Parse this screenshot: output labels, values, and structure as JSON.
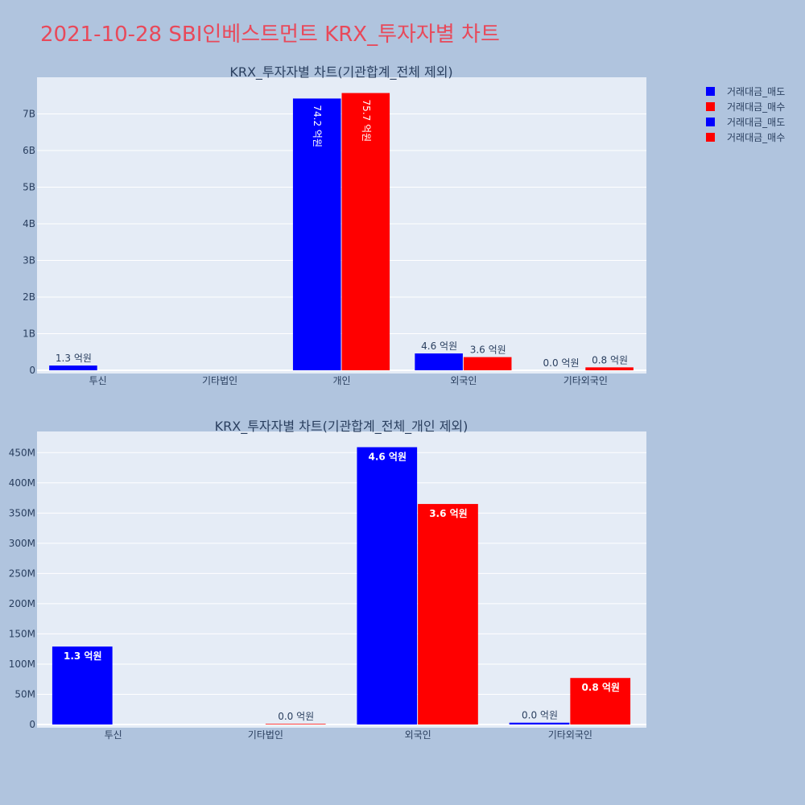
{
  "page": {
    "title": "2021-10-28 SBI인베스트먼트 KRX_투자자별 차트",
    "background": "#b0c4de",
    "title_color": "#e8495a",
    "plot_background": "#e5ecf6"
  },
  "legend": {
    "placement": "top-right",
    "items": [
      {
        "label": "거래대금_매도",
        "color": "#0000ff"
      },
      {
        "label": "거래대금_매수",
        "color": "#ff0000"
      },
      {
        "label": "거래대금_매도",
        "color": "#0000ff"
      },
      {
        "label": "거래대금_매수",
        "color": "#ff0000"
      }
    ]
  },
  "chart_data": [
    {
      "type": "bar",
      "title": "KRX_투자자별 차트(기관합계_전체 제외)",
      "categories": [
        "투신",
        "기타법인",
        "개인",
        "외국인",
        "기타외국인"
      ],
      "series": [
        {
          "name": "거래대금_매도",
          "color": "#0000ff",
          "values": [
            130000000,
            0,
            7420000000,
            460000000,
            0
          ],
          "labels": [
            "1.3 억원",
            "",
            "74.2 억원",
            "4.6 억원",
            "0.0 억원"
          ]
        },
        {
          "name": "거래대금_매수",
          "color": "#ff0000",
          "values": [
            0,
            0,
            7570000000,
            360000000,
            80000000
          ],
          "labels": [
            "",
            "",
            "75.7 억원",
            "3.6 억원",
            "0.8 억원"
          ]
        }
      ],
      "ylim": [
        0,
        8000000000
      ],
      "yticks": [
        {
          "value": 0,
          "label": "0"
        },
        {
          "value": 1000000000,
          "label": "1B"
        },
        {
          "value": 2000000000,
          "label": "2B"
        },
        {
          "value": 3000000000,
          "label": "3B"
        },
        {
          "value": 4000000000,
          "label": "4B"
        },
        {
          "value": 5000000000,
          "label": "5B"
        },
        {
          "value": 6000000000,
          "label": "6B"
        },
        {
          "value": 7000000000,
          "label": "7B"
        }
      ],
      "grid": true
    },
    {
      "type": "bar",
      "title": "KRX_투자자별 차트(기관합계_전체_개인 제외)",
      "categories": [
        "투신",
        "기타법인",
        "외국인",
        "기타외국인"
      ],
      "series": [
        {
          "name": "거래대금_매도",
          "color": "#0000ff",
          "values": [
            129000000,
            0,
            459000000,
            3000000
          ],
          "labels": [
            "1.3 억원",
            "",
            "4.6 억원",
            "0.0 억원"
          ]
        },
        {
          "name": "거래대금_매수",
          "color": "#ff0000",
          "values": [
            0,
            1000000,
            365000000,
            77000000
          ],
          "labels": [
            "",
            "0.0 억원",
            "3.6 억원",
            "0.8 억원"
          ]
        }
      ],
      "ylim": [
        0,
        485000000
      ],
      "yticks": [
        {
          "value": 0,
          "label": "0"
        },
        {
          "value": 50000000,
          "label": "50M"
        },
        {
          "value": 100000000,
          "label": "100M"
        },
        {
          "value": 150000000,
          "label": "150M"
        },
        {
          "value": 200000000,
          "label": "200M"
        },
        {
          "value": 250000000,
          "label": "250M"
        },
        {
          "value": 300000000,
          "label": "300M"
        },
        {
          "value": 350000000,
          "label": "350M"
        },
        {
          "value": 400000000,
          "label": "400M"
        },
        {
          "value": 450000000,
          "label": "450M"
        }
      ],
      "grid": true
    }
  ]
}
